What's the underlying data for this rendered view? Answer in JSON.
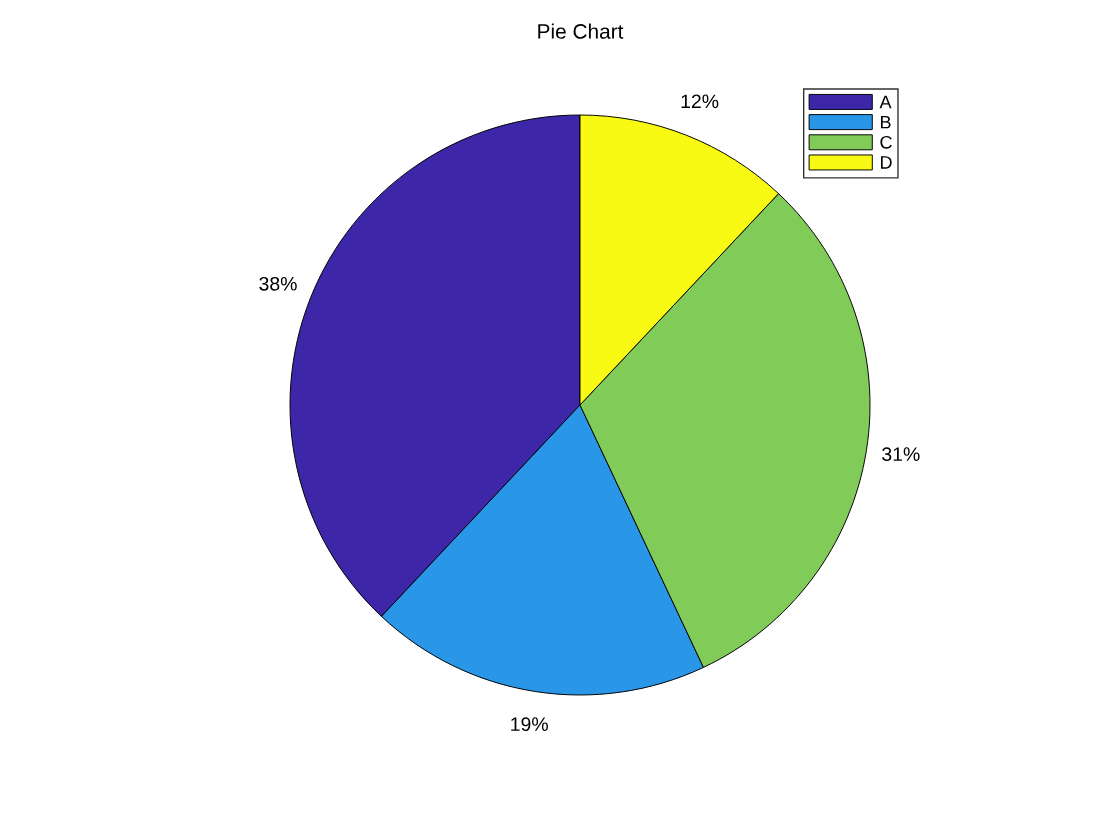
{
  "chart_data": {
    "type": "pie",
    "title": "Pie Chart",
    "categories": [
      "A",
      "B",
      "C",
      "D"
    ],
    "values": [
      38,
      19,
      31,
      12
    ],
    "colors": [
      "#3e26a8",
      "#2a96e8",
      "#81cc59",
      "#f9fa14"
    ],
    "value_labels": [
      "38%",
      "19%",
      "31%",
      "12%"
    ],
    "legend": "top right"
  }
}
